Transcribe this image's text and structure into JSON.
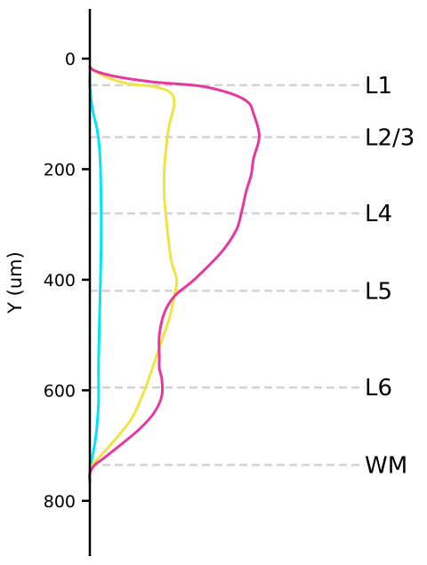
{
  "chart_data": {
    "type": "line",
    "title": "",
    "xlabel": "",
    "ylabel": "Y (um)",
    "ylim": [
      900,
      -90
    ],
    "y_inverted": true,
    "x_axis_visible": false,
    "grid": false,
    "y_ticks": [
      0,
      200,
      400,
      600,
      800
    ],
    "layers": [
      {
        "label": "L1",
        "y": 48
      },
      {
        "label": "L2/3",
        "y": 142
      },
      {
        "label": "L4",
        "y": 280
      },
      {
        "label": "L5",
        "y": 420
      },
      {
        "label": "L6",
        "y": 595
      },
      {
        "label": "WM",
        "y": 735
      }
    ],
    "layer_line_color": "#d3d3d3",
    "xlim": [
      0,
      1
    ],
    "series": [
      {
        "color": "#00e5ff",
        "points": [
          [
            0.0,
            30
          ],
          [
            0.0,
            50
          ],
          [
            0.01,
            90
          ],
          [
            0.03,
            130
          ],
          [
            0.04,
            170
          ],
          [
            0.045,
            250
          ],
          [
            0.045,
            350
          ],
          [
            0.04,
            450
          ],
          [
            0.035,
            550
          ],
          [
            0.035,
            620
          ],
          [
            0.025,
            680
          ],
          [
            0.01,
            720
          ],
          [
            0.0,
            740
          ]
        ]
      },
      {
        "color": "#f0e442",
        "points": [
          [
            0.0,
            15
          ],
          [
            0.05,
            30
          ],
          [
            0.15,
            45
          ],
          [
            0.25,
            50
          ],
          [
            0.32,
            60
          ],
          [
            0.34,
            80
          ],
          [
            0.32,
            120
          ],
          [
            0.31,
            150
          ],
          [
            0.3,
            200
          ],
          [
            0.3,
            250
          ],
          [
            0.31,
            300
          ],
          [
            0.32,
            340
          ],
          [
            0.33,
            370
          ],
          [
            0.35,
            400
          ],
          [
            0.34,
            430
          ],
          [
            0.32,
            470
          ],
          [
            0.29,
            510
          ],
          [
            0.26,
            550
          ],
          [
            0.22,
            600
          ],
          [
            0.17,
            650
          ],
          [
            0.1,
            690
          ],
          [
            0.04,
            720
          ],
          [
            0.01,
            735
          ],
          [
            0.0,
            745
          ]
        ]
      },
      {
        "color": "#e8389f",
        "points": [
          [
            0.0,
            15
          ],
          [
            0.02,
            22
          ],
          [
            0.1,
            32
          ],
          [
            0.25,
            42
          ],
          [
            0.45,
            50
          ],
          [
            0.58,
            65
          ],
          [
            0.64,
            80
          ],
          [
            0.66,
            100
          ],
          [
            0.68,
            130
          ],
          [
            0.68,
            150
          ],
          [
            0.66,
            180
          ],
          [
            0.65,
            210
          ],
          [
            0.63,
            240
          ],
          [
            0.61,
            280
          ],
          [
            0.59,
            310
          ],
          [
            0.53,
            350
          ],
          [
            0.42,
            400
          ],
          [
            0.34,
            430
          ],
          [
            0.3,
            460
          ],
          [
            0.28,
            500
          ],
          [
            0.28,
            540
          ],
          [
            0.28,
            560
          ],
          [
            0.29,
            580
          ],
          [
            0.29,
            610
          ],
          [
            0.26,
            640
          ],
          [
            0.2,
            670
          ],
          [
            0.12,
            700
          ],
          [
            0.05,
            725
          ],
          [
            0.02,
            735
          ],
          [
            0.0,
            750
          ],
          [
            0.0,
            765
          ]
        ]
      }
    ]
  }
}
